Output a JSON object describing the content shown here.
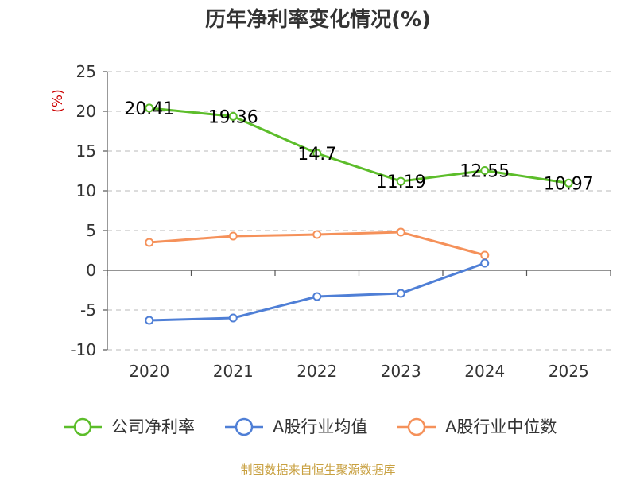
{
  "chart_data": {
    "type": "line",
    "title": "历年净利率变化情况(%)",
    "ylabel": "(%)",
    "categories": [
      "2020",
      "2021",
      "2022",
      "2023",
      "2024",
      "2025"
    ],
    "y_ticks": [
      "25",
      "20",
      "15",
      "10",
      "5",
      "0",
      "-5",
      "-10"
    ],
    "ylim": [
      -10,
      25
    ],
    "grid": true,
    "legend_placement": "bottom",
    "series": [
      {
        "name": "公司净利率",
        "color": "#5cbd2a",
        "values": [
          20.41,
          19.36,
          14.7,
          11.19,
          12.55,
          10.97
        ],
        "data_labels": [
          "20.41",
          "19.36",
          "14.7",
          "11.19",
          "12.55",
          "10.97"
        ]
      },
      {
        "name": "A股行业均值",
        "color": "#4f7fd6",
        "values": [
          -6.3,
          -6.0,
          -3.3,
          -2.9,
          0.9,
          null
        ]
      },
      {
        "name": "A股行业中位数",
        "color": "#f5915a",
        "values": [
          3.5,
          4.3,
          4.5,
          4.8,
          1.9,
          null
        ]
      }
    ]
  },
  "footer": {
    "source": "制图数据来自恒生聚源数据库"
  }
}
